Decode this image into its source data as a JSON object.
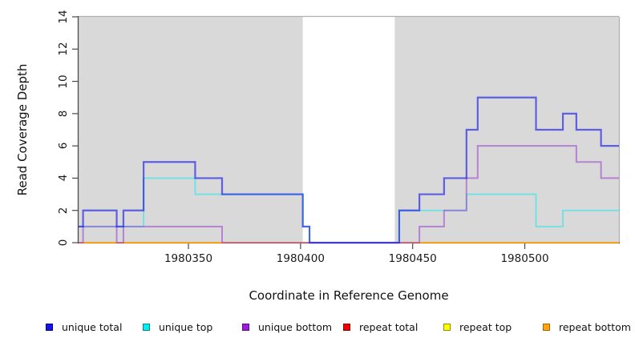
{
  "figure": {
    "xlabel": "Coordinate in Reference Genome",
    "ylabel": "Read Coverage Depth"
  },
  "chart_data": {
    "type": "line",
    "subtype": "step-coverage",
    "title": "",
    "xlabel": "Coordinate in Reference Genome",
    "ylabel": "Read Coverage Depth",
    "xlim": [
      1980301,
      1980542
    ],
    "ylim": [
      0,
      14
    ],
    "xticks": [
      1980350,
      1980400,
      1980450,
      1980500
    ],
    "yticks": [
      0,
      2,
      4,
      6,
      8,
      10,
      12,
      14
    ],
    "grid": false,
    "panel_color": "#d9d9d9",
    "panel_border_color": "#b0b0b0",
    "axis_color": "#4a4a4a",
    "shaded_regions": [
      [
        1980301,
        1980401
      ],
      [
        1980442,
        1980542
      ]
    ],
    "series": [
      {
        "name": "repeat total",
        "color": "rgba(221,0,0,0.85)",
        "width": 1.8,
        "points": [
          [
            1980301,
            0
          ]
        ]
      },
      {
        "name": "repeat top",
        "color": "rgba(238,238,0,0.85)",
        "width": 1.8,
        "points": [
          [
            1980301,
            0
          ]
        ]
      },
      {
        "name": "repeat bottom",
        "color": "rgba(247,159,30,0.95)",
        "width": 1.8,
        "points": [
          [
            1980301,
            0
          ]
        ]
      },
      {
        "name": "unique top",
        "color": "rgba(0,235,235,0.5)",
        "width": 1.8,
        "points": [
          [
            1980301,
            1
          ],
          [
            1980330,
            4
          ],
          [
            1980353,
            3
          ],
          [
            1980401,
            1
          ],
          [
            1980404,
            0
          ],
          [
            1980444,
            2
          ],
          [
            1980474,
            3
          ],
          [
            1980505,
            1
          ],
          [
            1980517,
            2
          ]
        ]
      },
      {
        "name": "unique bottom",
        "color": "rgba(153,60,204,0.55)",
        "width": 2.0,
        "points": [
          [
            1980301,
            0
          ],
          [
            1980303,
            1
          ],
          [
            1980318,
            0
          ],
          [
            1980321,
            1
          ],
          [
            1980365,
            0
          ],
          [
            1980453,
            1
          ],
          [
            1980464,
            2
          ],
          [
            1980474,
            4
          ],
          [
            1980479,
            6
          ],
          [
            1980523,
            5
          ],
          [
            1980534,
            4
          ]
        ]
      },
      {
        "name": "unique total",
        "color": "rgba(18,18,230,0.62)",
        "width": 2.2,
        "points": [
          [
            1980301,
            1
          ],
          [
            1980303,
            2
          ],
          [
            1980318,
            1
          ],
          [
            1980321,
            2
          ],
          [
            1980330,
            5
          ],
          [
            1980353,
            4
          ],
          [
            1980365,
            3
          ],
          [
            1980401,
            1
          ],
          [
            1980404,
            0
          ],
          [
            1980444,
            2
          ],
          [
            1980453,
            3
          ],
          [
            1980464,
            4
          ],
          [
            1980474,
            7
          ],
          [
            1980479,
            9
          ],
          [
            1980505,
            7
          ],
          [
            1980517,
            8
          ],
          [
            1980523,
            7
          ],
          [
            1980534,
            6
          ]
        ]
      }
    ],
    "legend": {
      "position": "bottom",
      "items": [
        {
          "label": "unique total",
          "fill": "#1414e6",
          "border": "#00008b"
        },
        {
          "label": "unique top",
          "fill": "#00eeee",
          "border": "#008b8b"
        },
        {
          "label": "unique bottom",
          "fill": "#9a1fd6",
          "border": "#5e0b8b"
        },
        {
          "label": "repeat total",
          "fill": "#ee0000",
          "border": "#8b0000"
        },
        {
          "label": "repeat top",
          "fill": "#ffff00",
          "border": "#8f8f00"
        },
        {
          "label": "repeat bottom",
          "fill": "#ffa510",
          "border": "#a66400"
        }
      ]
    }
  }
}
